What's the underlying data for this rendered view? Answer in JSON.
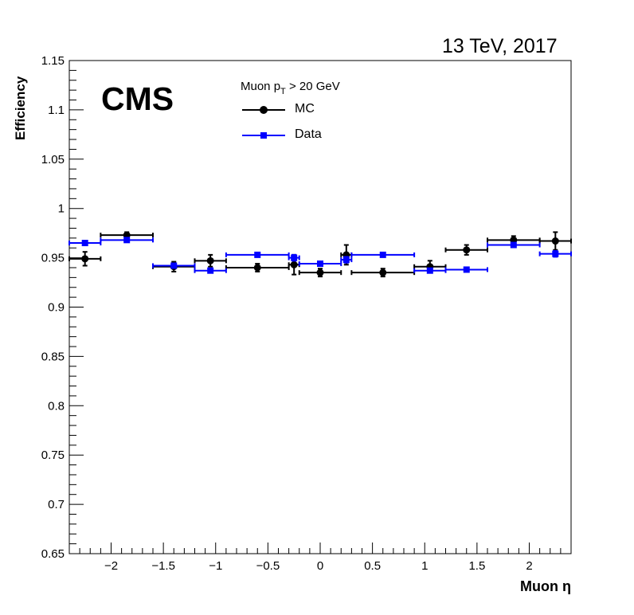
{
  "header": {
    "energy": "13 TeV, 2017",
    "experiment": "CMS"
  },
  "legend": {
    "header_text": "Muon p",
    "header_sub": "T",
    "header_suffix": " > 20 GeV",
    "entries": [
      {
        "label": "MC",
        "color": "#000000",
        "marker": "circle"
      },
      {
        "label": "Data",
        "color": "#0000ff",
        "marker": "square"
      }
    ]
  },
  "chart_data": {
    "type": "scatter",
    "xlabel": "Muon  η",
    "ylabel": "Efficiency",
    "xlim": [
      -2.4,
      2.4
    ],
    "ylim": [
      0.65,
      1.15
    ],
    "xticks": [
      -2,
      -1.5,
      -1,
      -0.5,
      0,
      0.5,
      1,
      1.5,
      2
    ],
    "xtick_labels": [
      "−2",
      "−1.5",
      "−1",
      "−0.5",
      "0",
      "0.5",
      "1",
      "1.5",
      "2"
    ],
    "yticks": [
      0.65,
      0.7,
      0.75,
      0.8,
      0.85,
      0.9,
      0.95,
      1,
      1.05,
      1.1,
      1.15
    ],
    "ytick_labels": [
      "0.65",
      "0.7",
      "0.75",
      "0.8",
      "0.85",
      "0.9",
      "0.95",
      "1",
      "1.05",
      "1.1",
      "1.15"
    ],
    "series": [
      {
        "name": "MC",
        "color": "#000000",
        "marker": "circle",
        "points": [
          {
            "xlo": -2.4,
            "xhi": -2.1,
            "x": -2.25,
            "y": 0.949,
            "err": 0.007
          },
          {
            "xlo": -2.1,
            "xhi": -1.6,
            "x": -1.85,
            "y": 0.973,
            "err": 0.003
          },
          {
            "xlo": -1.6,
            "xhi": -1.2,
            "x": -1.4,
            "y": 0.941,
            "err": 0.005
          },
          {
            "xlo": -1.2,
            "xhi": -0.9,
            "x": -1.05,
            "y": 0.947,
            "err": 0.006
          },
          {
            "xlo": -0.9,
            "xhi": -0.3,
            "x": -0.6,
            "y": 0.94,
            "err": 0.004
          },
          {
            "xlo": -0.3,
            "xhi": -0.2,
            "x": -0.25,
            "y": 0.943,
            "err": 0.01
          },
          {
            "xlo": -0.2,
            "xhi": 0.2,
            "x": 0.0,
            "y": 0.935,
            "err": 0.004
          },
          {
            "xlo": 0.2,
            "xhi": 0.3,
            "x": 0.25,
            "y": 0.953,
            "err": 0.01
          },
          {
            "xlo": 0.3,
            "xhi": 0.9,
            "x": 0.6,
            "y": 0.935,
            "err": 0.004
          },
          {
            "xlo": 0.9,
            "xhi": 1.2,
            "x": 1.05,
            "y": 0.941,
            "err": 0.006
          },
          {
            "xlo": 1.2,
            "xhi": 1.6,
            "x": 1.4,
            "y": 0.958,
            "err": 0.005
          },
          {
            "xlo": 1.6,
            "xhi": 2.1,
            "x": 1.85,
            "y": 0.968,
            "err": 0.004
          },
          {
            "xlo": 2.1,
            "xhi": 2.4,
            "x": 2.25,
            "y": 0.967,
            "err": 0.009
          }
        ]
      },
      {
        "name": "Data",
        "color": "#0000ff",
        "marker": "square",
        "points": [
          {
            "xlo": -2.4,
            "xhi": -2.1,
            "x": -2.25,
            "y": 0.965,
            "err": 0.001
          },
          {
            "xlo": -2.1,
            "xhi": -1.6,
            "x": -1.85,
            "y": 0.968,
            "err": 0.001
          },
          {
            "xlo": -1.6,
            "xhi": -1.2,
            "x": -1.4,
            "y": 0.942,
            "err": 0.001
          },
          {
            "xlo": -1.2,
            "xhi": -0.9,
            "x": -1.05,
            "y": 0.937,
            "err": 0.001
          },
          {
            "xlo": -0.9,
            "xhi": -0.3,
            "x": -0.6,
            "y": 0.953,
            "err": 0.001
          },
          {
            "xlo": -0.3,
            "xhi": -0.2,
            "x": -0.25,
            "y": 0.95,
            "err": 0.003
          },
          {
            "xlo": -0.2,
            "xhi": 0.2,
            "x": 0.0,
            "y": 0.944,
            "err": 0.001
          },
          {
            "xlo": 0.2,
            "xhi": 0.3,
            "x": 0.25,
            "y": 0.948,
            "err": 0.003
          },
          {
            "xlo": 0.3,
            "xhi": 0.9,
            "x": 0.6,
            "y": 0.953,
            "err": 0.001
          },
          {
            "xlo": 0.9,
            "xhi": 1.2,
            "x": 1.05,
            "y": 0.937,
            "err": 0.001
          },
          {
            "xlo": 1.2,
            "xhi": 1.6,
            "x": 1.4,
            "y": 0.938,
            "err": 0.001
          },
          {
            "xlo": 1.6,
            "xhi": 2.1,
            "x": 1.85,
            "y": 0.963,
            "err": 0.001
          },
          {
            "xlo": 2.1,
            "xhi": 2.4,
            "x": 2.25,
            "y": 0.954,
            "err": 0.003
          }
        ]
      }
    ]
  }
}
